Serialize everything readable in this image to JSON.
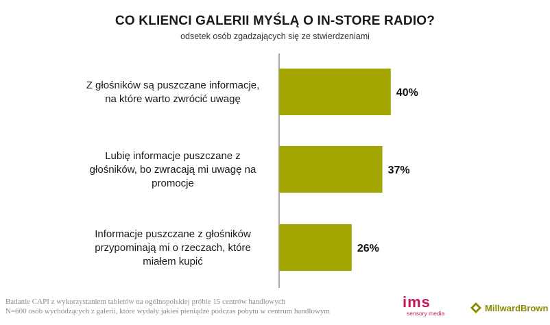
{
  "title": "CO KLIENCI GALERII MYŚLĄ O IN-STORE RADIO?",
  "subtitle": "odsetek osób zgadzających się ze stwierdzeniami",
  "chart_data": {
    "type": "bar",
    "orientation": "horizontal",
    "categories": [
      [
        "Z głośników są puszczane informacje,",
        "na które warto zwrócić uwagę"
      ],
      [
        "Lubię informacje puszczane z",
        "głośników, bo zwracają mi uwagę na",
        "promocje"
      ],
      [
        "Informacje puszczane z głośników",
        "przypominają mi o rzeczach, które",
        "miałem kupić"
      ]
    ],
    "values": [
      40,
      37,
      26
    ],
    "value_labels": [
      "40%",
      "37%",
      "26%"
    ],
    "unit": "%",
    "xlim": [
      0,
      100
    ],
    "bar_color": "#a3a600",
    "grid": false
  },
  "footnote": {
    "line1": "Badanie CAPI z wykorzystaniem tabletów na ogólnopolskiej próbie 15 centrów handlowych",
    "line2": "N=600 osób wychodzących z galerii, które wydały jakieś pieniądze podczas pobytu w centrum handlowym"
  },
  "logos": {
    "ims": "ims",
    "ims_sub": "sensory media",
    "millward": "MillwardBrown"
  },
  "colors": {
    "accent": "#a3a600",
    "ims_brand": "#c2185b",
    "millward_brand": "#8a8a00"
  }
}
